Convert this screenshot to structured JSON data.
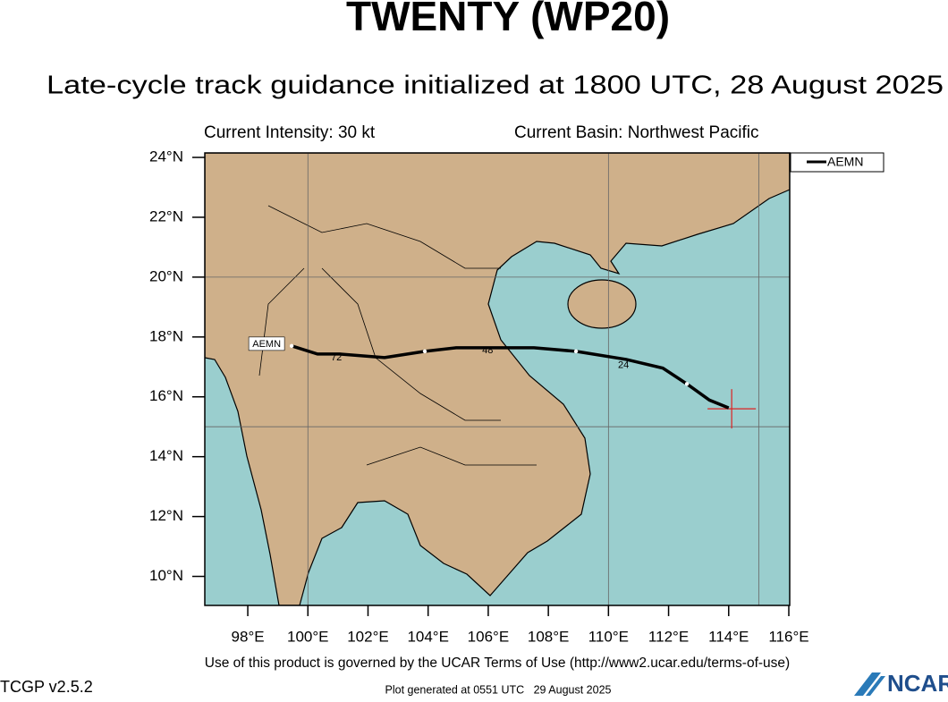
{
  "header": {
    "title": "TWENTY (WP20)",
    "subtitle": "Late-cycle track guidance initialized at 1800 UTC, 28 August 2025",
    "intensity": "Current Intensity: 30 kt",
    "basin": "Current Basin: Northwest Pacific"
  },
  "map": {
    "xlim": [
      96.57,
      116.03
    ],
    "ylim": [
      9.03,
      24.15
    ],
    "xticks": [
      {
        "value": 98,
        "label": "98°E"
      },
      {
        "value": 100,
        "label": "100°E"
      },
      {
        "value": 102,
        "label": "102°E"
      },
      {
        "value": 104,
        "label": "104°E"
      },
      {
        "value": 106,
        "label": "106°E"
      },
      {
        "value": 108,
        "label": "108°E"
      },
      {
        "value": 110,
        "label": "110°E"
      },
      {
        "value": 112,
        "label": "112°E"
      },
      {
        "value": 114,
        "label": "114°E"
      },
      {
        "value": 116,
        "label": "116°E"
      }
    ],
    "yticks": [
      {
        "value": 10,
        "label": "10°N"
      },
      {
        "value": 12,
        "label": "12°N"
      },
      {
        "value": 14,
        "label": "14°N"
      },
      {
        "value": 16,
        "label": "16°N"
      },
      {
        "value": 18,
        "label": "18°N"
      },
      {
        "value": 20,
        "label": "20°N"
      },
      {
        "value": 22,
        "label": "22°N"
      },
      {
        "value": 24,
        "label": "24°N"
      }
    ],
    "grid_lon": [
      100,
      110,
      115
    ],
    "grid_lat": [
      15,
      20
    ],
    "current": {
      "lon": 114.1,
      "lat": 15.6
    },
    "series": [
      {
        "name": "AEMN",
        "color": "#000000",
        "lon": [
          114.0,
          113.36,
          112.61,
          111.81,
          110.59,
          108.92,
          107.52,
          105.98,
          104.93,
          103.89,
          102.55,
          101.07,
          100.32,
          99.46
        ],
        "lat": [
          15.63,
          15.89,
          16.43,
          16.96,
          17.25,
          17.52,
          17.64,
          17.64,
          17.64,
          17.52,
          17.31,
          17.43,
          17.43,
          17.7
        ]
      }
    ],
    "dots": [
      {
        "lon": 112.61,
        "lat": 16.43
      },
      {
        "lon": 108.92,
        "lat": 17.52
      },
      {
        "lon": 103.89,
        "lat": 17.52
      },
      {
        "lon": 99.46,
        "lat": 17.7
      }
    ],
    "hour_labels": [
      {
        "text": 24,
        "lon": 110.5,
        "lat": 17.05
      },
      {
        "text": 48,
        "lon": 105.98,
        "lat": 17.55
      },
      {
        "text": 72,
        "lon": 100.95,
        "lat": 17.3
      }
    ]
  },
  "footer": {
    "terms": "Use of this product is governed by the UCAR Terms of Use (http://www2.ucar.edu/terms-of-use)",
    "version": "TCGP v2.5.2",
    "generated": "Plot generated at 0551 UTC   29 August 2025",
    "logo": "NCAR"
  }
}
